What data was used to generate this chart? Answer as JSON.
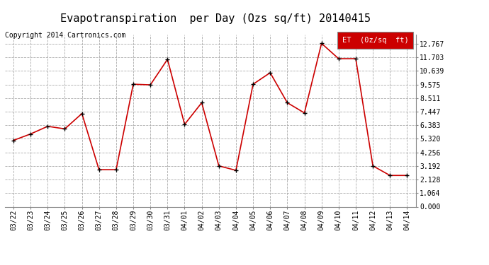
{
  "title": "Evapotranspiration  per Day (Ozs sq/ft) 20140415",
  "copyright": "Copyright 2014 Cartronics.com",
  "legend_label": "ET  (0z/sq  ft)",
  "dates": [
    "03/22",
    "03/23",
    "03/24",
    "03/25",
    "03/26",
    "03/27",
    "03/28",
    "03/29",
    "03/30",
    "03/31",
    "04/01",
    "04/02",
    "04/03",
    "04/04",
    "04/05",
    "04/06",
    "04/07",
    "04/08",
    "04/09",
    "04/10",
    "04/11",
    "04/12",
    "04/13",
    "04/14"
  ],
  "values": [
    5.2,
    5.7,
    6.3,
    6.1,
    7.3,
    2.9,
    2.9,
    9.6,
    9.55,
    11.55,
    6.45,
    8.15,
    3.2,
    2.85,
    9.6,
    10.5,
    8.15,
    7.35,
    12.8,
    11.6,
    11.6,
    3.2,
    2.45,
    2.45
  ],
  "yticks": [
    0.0,
    1.064,
    2.128,
    3.192,
    4.256,
    5.32,
    6.383,
    7.447,
    8.511,
    9.575,
    10.639,
    11.703,
    12.767
  ],
  "ylim": [
    0.0,
    13.5
  ],
  "line_color": "#cc0000",
  "marker_color": "#000000",
  "bg_color": "#ffffff",
  "grid_color": "#aaaaaa",
  "title_fontsize": 11,
  "copyright_fontsize": 7,
  "tick_fontsize": 7,
  "legend_bg": "#cc0000",
  "legend_text_color": "#ffffff",
  "legend_fontsize": 7.5
}
